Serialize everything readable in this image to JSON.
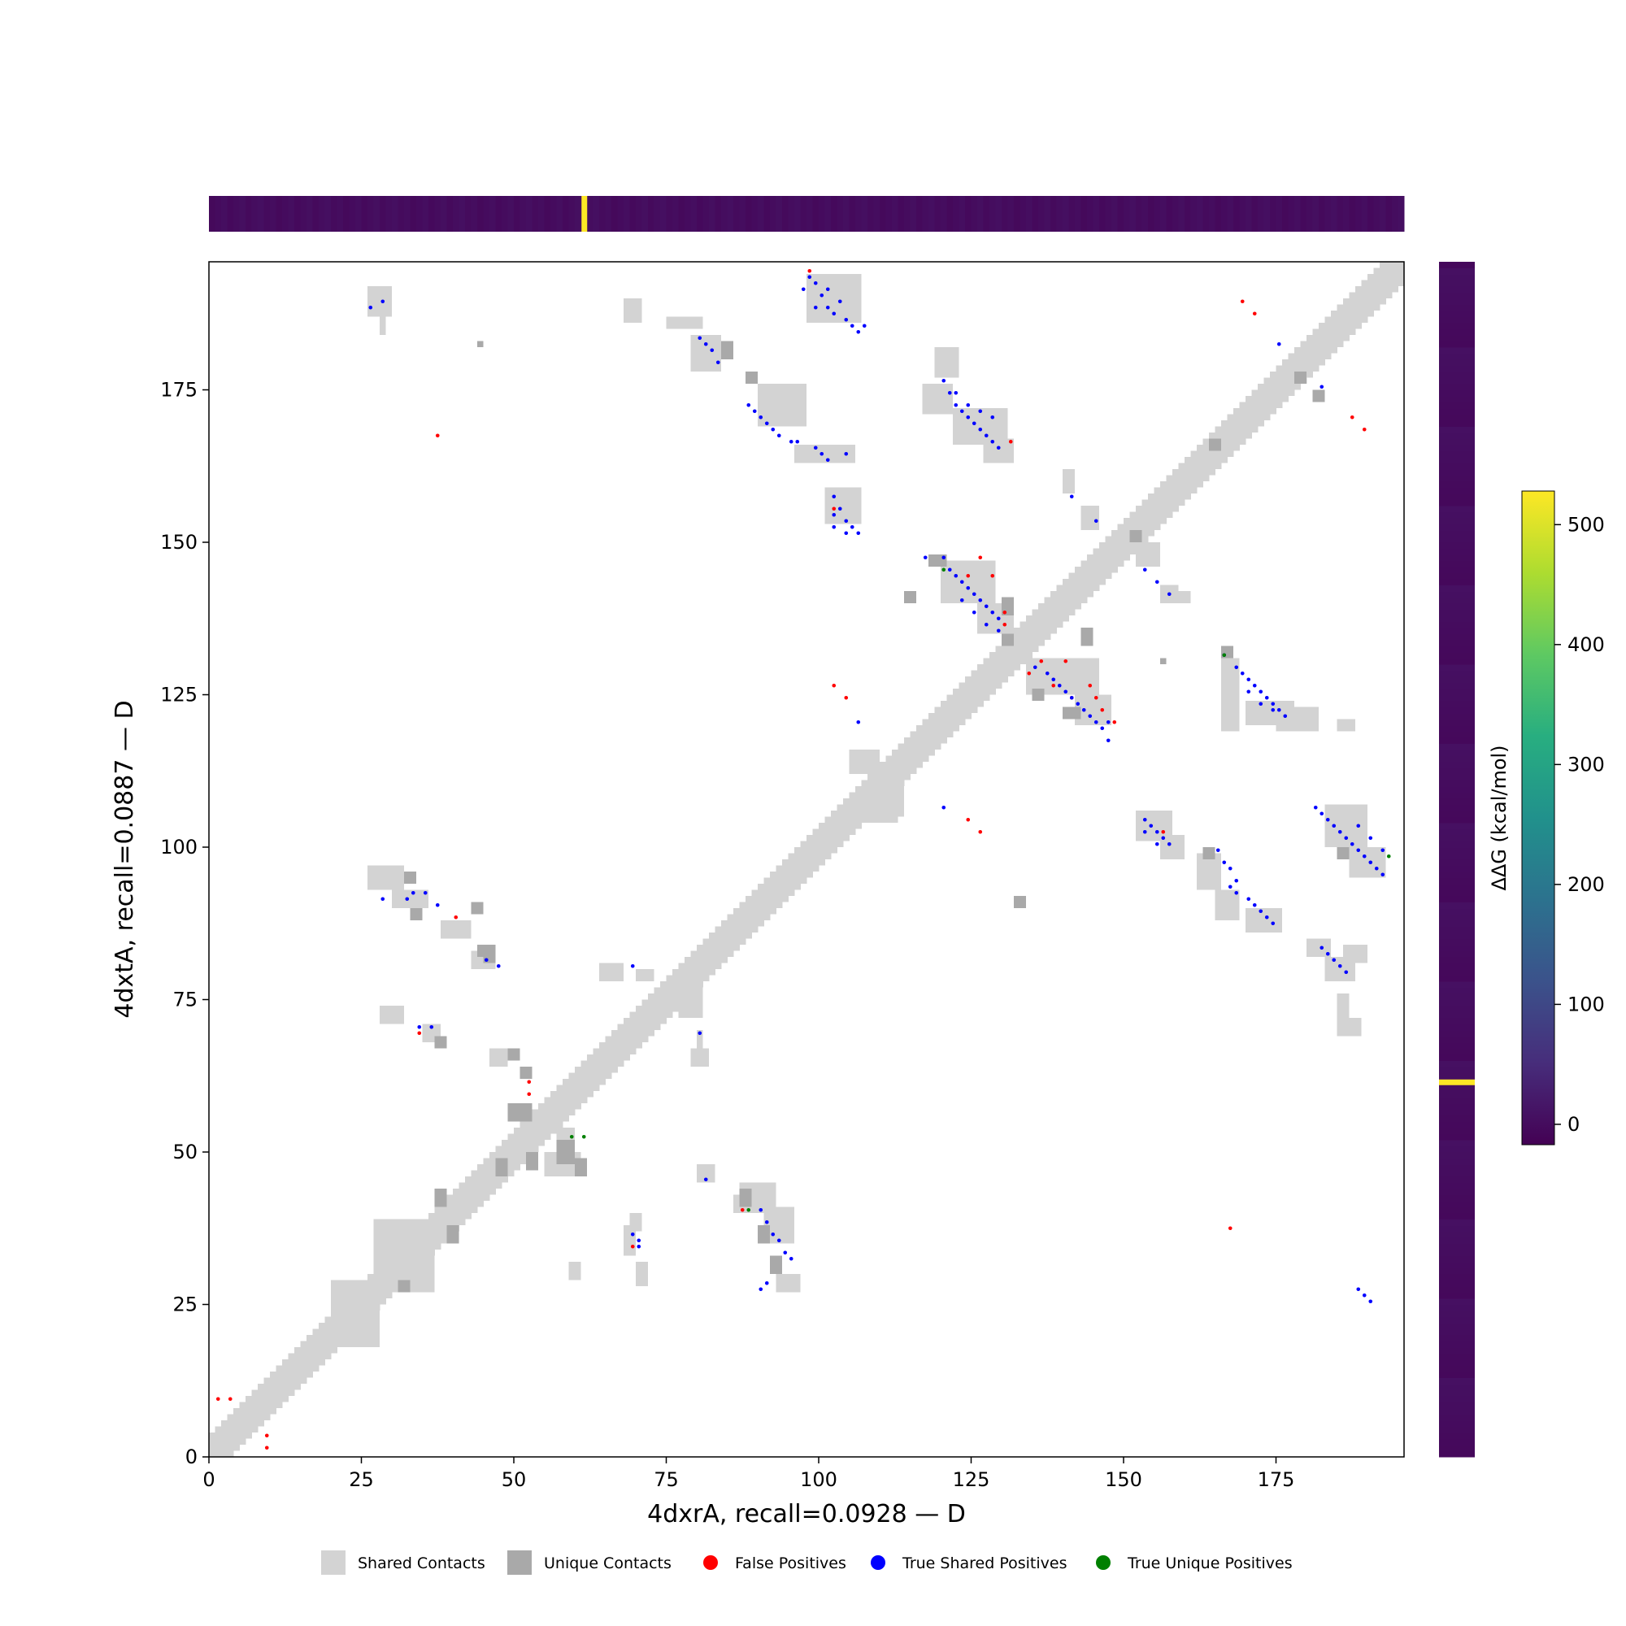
{
  "chart_data": {
    "type": "heatmap",
    "subtype": "protein contact map comparison",
    "xlabel": "4dxrA, recall=0.0928 — D",
    "ylabel": "4dxtA, recall=0.0887 — D",
    "xlim": [
      0,
      196
    ],
    "ylim": [
      0,
      196
    ],
    "x_ticks": [
      0,
      25,
      50,
      75,
      100,
      125,
      150,
      175
    ],
    "y_ticks": [
      0,
      25,
      50,
      75,
      100,
      125,
      150,
      175
    ],
    "colorbar": {
      "label": "ΔΔG (kcal/mol)",
      "colormap": "viridis",
      "ticks": [
        0,
        100,
        200,
        300,
        400,
        500
      ],
      "range": [
        -17,
        528
      ]
    },
    "top_strip": {
      "colormap": "viridis",
      "baseline_value": 0,
      "highlight": {
        "residue": 61.5,
        "value": 528
      }
    },
    "right_strip": {
      "colormap": "viridis",
      "baseline_value": 0,
      "highlight": {
        "residue": 61.5,
        "value": 528
      }
    },
    "legend": {
      "placement": "bottom",
      "items": [
        {
          "label": "Shared Contacts",
          "marker": "square",
          "color": "#d3d3d3"
        },
        {
          "label": "Unique Contacts",
          "marker": "square",
          "color": "#a9a9a9"
        },
        {
          "label": "False Positives",
          "marker": "circle",
          "color": "#ff0000"
        },
        {
          "label": "True Shared Positives",
          "marker": "circle",
          "color": "#0000ff"
        },
        {
          "label": "True Unique Positives",
          "marker": "circle",
          "color": "#008000"
        }
      ]
    },
    "colors": {
      "shared": "#d3d3d3",
      "unique": "#a9a9a9",
      "false_positive": "#ff0000",
      "true_shared": "#0000ff",
      "true_unique": "#008000"
    },
    "diagonal_band": {
      "half_width": 3
    },
    "shared_contact_blocks": [
      [
        26,
        187,
        4,
        5
      ],
      [
        28,
        184,
        1,
        3
      ],
      [
        68,
        186,
        3,
        4
      ],
      [
        75,
        185,
        6,
        2
      ],
      [
        79,
        178,
        5,
        6
      ],
      [
        90,
        169,
        8,
        7
      ],
      [
        96,
        163,
        10,
        3
      ],
      [
        101,
        153,
        6,
        6
      ],
      [
        98,
        186,
        9,
        8
      ],
      [
        117,
        171,
        5,
        5
      ],
      [
        122,
        166,
        9,
        6
      ],
      [
        127,
        163,
        5,
        4
      ],
      [
        119,
        177,
        4,
        5
      ],
      [
        140,
        158,
        2,
        4
      ],
      [
        143,
        152,
        3,
        4
      ],
      [
        152,
        146,
        4,
        4
      ],
      [
        156,
        140,
        3,
        3
      ],
      [
        158,
        140,
        3,
        2
      ],
      [
        120,
        140,
        9,
        7
      ],
      [
        126,
        135,
        6,
        5
      ],
      [
        134,
        125,
        12,
        6
      ],
      [
        142,
        120,
        6,
        5
      ],
      [
        166,
        119,
        3,
        12
      ],
      [
        170,
        120,
        8,
        4
      ],
      [
        175,
        119,
        7,
        4
      ],
      [
        185,
        119,
        3,
        2
      ],
      [
        110,
        108,
        4,
        6
      ],
      [
        105,
        112,
        5,
        4
      ],
      [
        107,
        104,
        6,
        6
      ],
      [
        111,
        105,
        3,
        4
      ],
      [
        152,
        101,
        6,
        5
      ],
      [
        156,
        98,
        4,
        4
      ],
      [
        162,
        93,
        4,
        6
      ],
      [
        165,
        88,
        4,
        5
      ],
      [
        170,
        86,
        6,
        4
      ],
      [
        183,
        100,
        7,
        7
      ],
      [
        187,
        95,
        6,
        5
      ],
      [
        189,
        96,
        3,
        4
      ],
      [
        186,
        81,
        4,
        3
      ],
      [
        183,
        78,
        5,
        4
      ],
      [
        180,
        82,
        4,
        3
      ],
      [
        185,
        69,
        4,
        3
      ],
      [
        185,
        72,
        2,
        4
      ],
      [
        26,
        93,
        6,
        4
      ],
      [
        30,
        90,
        6,
        3
      ],
      [
        38,
        85,
        5,
        3
      ],
      [
        43,
        80,
        4,
        3
      ],
      [
        64,
        78,
        4,
        3
      ],
      [
        77,
        72,
        4,
        6
      ],
      [
        70,
        78,
        3,
        2
      ],
      [
        79,
        64,
        3,
        3
      ],
      [
        80,
        66,
        1,
        4
      ],
      [
        28,
        71,
        4,
        3
      ],
      [
        35,
        68,
        3,
        3
      ],
      [
        46,
        64,
        3,
        3
      ],
      [
        55,
        46,
        6,
        4
      ],
      [
        57,
        50,
        3,
        4
      ],
      [
        87,
        40,
        6,
        5
      ],
      [
        91,
        35,
        5,
        6
      ],
      [
        93,
        27,
        4,
        3
      ],
      [
        80,
        45,
        3,
        3
      ],
      [
        86,
        40,
        3,
        3
      ],
      [
        59,
        29,
        2,
        3
      ],
      [
        68,
        33,
        2,
        5
      ],
      [
        70,
        28,
        2,
        4
      ],
      [
        69,
        37,
        2,
        3
      ],
      [
        27,
        27,
        10,
        12
      ],
      [
        20,
        18,
        8,
        11
      ]
    ],
    "unique_contact_blocks": [
      [
        44,
        182,
        1,
        1
      ],
      [
        84,
        180,
        2,
        3
      ],
      [
        88,
        176,
        2,
        2
      ],
      [
        130,
        138,
        2,
        3
      ],
      [
        130,
        133,
        2,
        2
      ],
      [
        118,
        146,
        3,
        2
      ],
      [
        143,
        133,
        2,
        3
      ],
      [
        140,
        121,
        3,
        2
      ],
      [
        166,
        131,
        2,
        2
      ],
      [
        135,
        124,
        2,
        2
      ],
      [
        164,
        165,
        2,
        2
      ],
      [
        181,
        173,
        2,
        2
      ],
      [
        178,
        176,
        2,
        2
      ],
      [
        151,
        150,
        2,
        2
      ],
      [
        156,
        130,
        1,
        1
      ],
      [
        114,
        140,
        2,
        2
      ],
      [
        163,
        98,
        2,
        2
      ],
      [
        185,
        98,
        2,
        2
      ],
      [
        32,
        94,
        2,
        2
      ],
      [
        33,
        88,
        2,
        2
      ],
      [
        43,
        89,
        2,
        2
      ],
      [
        45,
        81,
        2,
        3
      ],
      [
        44,
        82,
        1,
        2
      ],
      [
        132,
        90,
        2,
        2
      ],
      [
        37,
        67,
        2,
        2
      ],
      [
        49,
        65,
        2,
        2
      ],
      [
        51,
        62,
        2,
        2
      ],
      [
        57,
        48,
        3,
        4
      ],
      [
        60,
        46,
        2,
        3
      ],
      [
        52,
        47,
        2,
        3
      ],
      [
        49,
        55,
        4,
        3
      ],
      [
        47,
        46,
        2,
        3
      ],
      [
        37,
        41,
        2,
        3
      ],
      [
        39,
        35,
        2,
        3
      ],
      [
        31,
        27,
        2,
        2
      ],
      [
        87,
        41,
        2,
        3
      ],
      [
        90,
        35,
        2,
        3
      ],
      [
        92,
        30,
        2,
        3
      ]
    ],
    "false_positives": [
      [
        98,
        194
      ],
      [
        169,
        189
      ],
      [
        171,
        187
      ],
      [
        37,
        167
      ],
      [
        131,
        166
      ],
      [
        187,
        170
      ],
      [
        189,
        168
      ],
      [
        102,
        155
      ],
      [
        126,
        147
      ],
      [
        130,
        138
      ],
      [
        130,
        136
      ],
      [
        128,
        144
      ],
      [
        124,
        144
      ],
      [
        102,
        126
      ],
      [
        104,
        124
      ],
      [
        136,
        130
      ],
      [
        140,
        130
      ],
      [
        134,
        128
      ],
      [
        138,
        126
      ],
      [
        141,
        124
      ],
      [
        144,
        126
      ],
      [
        145,
        124
      ],
      [
        146,
        122
      ],
      [
        148,
        120
      ],
      [
        124,
        104
      ],
      [
        126,
        102
      ],
      [
        156,
        102
      ],
      [
        40,
        88
      ],
      [
        34,
        69
      ],
      [
        52,
        61
      ],
      [
        52,
        59
      ],
      [
        69,
        34
      ],
      [
        87,
        40
      ],
      [
        167,
        37
      ],
      [
        1,
        9
      ],
      [
        3,
        9
      ],
      [
        9,
        3
      ],
      [
        9,
        1
      ]
    ],
    "true_shared_positives": [
      [
        98,
        193
      ],
      [
        97,
        191
      ],
      [
        99,
        192
      ],
      [
        100,
        190
      ],
      [
        101,
        188
      ],
      [
        103,
        189
      ],
      [
        102,
        187
      ],
      [
        104,
        186
      ],
      [
        105,
        185
      ],
      [
        106,
        184
      ],
      [
        107,
        185
      ],
      [
        99,
        188
      ],
      [
        101,
        191
      ],
      [
        28,
        189
      ],
      [
        26,
        188
      ],
      [
        80,
        183
      ],
      [
        81,
        182
      ],
      [
        82,
        181
      ],
      [
        83,
        179
      ],
      [
        88,
        172
      ],
      [
        89,
        171
      ],
      [
        90,
        170
      ],
      [
        91,
        169
      ],
      [
        92,
        168
      ],
      [
        93,
        167
      ],
      [
        95,
        166
      ],
      [
        96,
        166
      ],
      [
        99,
        165
      ],
      [
        100,
        164
      ],
      [
        101,
        163
      ],
      [
        104,
        164
      ],
      [
        120,
        176
      ],
      [
        121,
        174
      ],
      [
        122,
        172
      ],
      [
        123,
        171
      ],
      [
        124,
        170
      ],
      [
        125,
        169
      ],
      [
        126,
        168
      ],
      [
        127,
        167
      ],
      [
        128,
        166
      ],
      [
        129,
        165
      ],
      [
        122,
        174
      ],
      [
        124,
        172
      ],
      [
        126,
        171
      ],
      [
        128,
        170
      ],
      [
        102,
        157
      ],
      [
        103,
        155
      ],
      [
        104,
        153
      ],
      [
        105,
        152
      ],
      [
        106,
        151
      ],
      [
        102,
        152
      ],
      [
        104,
        151
      ],
      [
        102,
        154
      ],
      [
        117,
        147
      ],
      [
        120,
        147
      ],
      [
        121,
        145
      ],
      [
        122,
        144
      ],
      [
        123,
        143
      ],
      [
        124,
        142
      ],
      [
        125,
        141
      ],
      [
        126,
        140
      ],
      [
        127,
        139
      ],
      [
        128,
        138
      ],
      [
        129,
        137
      ],
      [
        123,
        140
      ],
      [
        125,
        138
      ],
      [
        127,
        136
      ],
      [
        129,
        135
      ],
      [
        135,
        129
      ],
      [
        137,
        128
      ],
      [
        138,
        127
      ],
      [
        139,
        126
      ],
      [
        140,
        125
      ],
      [
        141,
        124
      ],
      [
        142,
        123
      ],
      [
        143,
        122
      ],
      [
        144,
        121
      ],
      [
        145,
        120
      ],
      [
        146,
        119
      ],
      [
        147,
        117
      ],
      [
        147,
        120
      ],
      [
        141,
        157
      ],
      [
        145,
        153
      ],
      [
        153,
        145
      ],
      [
        155,
        143
      ],
      [
        157,
        141
      ],
      [
        175,
        182
      ],
      [
        182,
        175
      ],
      [
        166,
        131
      ],
      [
        168,
        129
      ],
      [
        169,
        128
      ],
      [
        170,
        127
      ],
      [
        171,
        126
      ],
      [
        172,
        125
      ],
      [
        173,
        124
      ],
      [
        174,
        123
      ],
      [
        175,
        122
      ],
      [
        170,
        125
      ],
      [
        172,
        123
      ],
      [
        174,
        122
      ],
      [
        176,
        121
      ],
      [
        106,
        120
      ],
      [
        120,
        106
      ],
      [
        153,
        104
      ],
      [
        154,
        103
      ],
      [
        155,
        102
      ],
      [
        156,
        101
      ],
      [
        157,
        100
      ],
      [
        155,
        100
      ],
      [
        153,
        102
      ],
      [
        165,
        99
      ],
      [
        166,
        97
      ],
      [
        167,
        96
      ],
      [
        168,
        94
      ],
      [
        167,
        93
      ],
      [
        168,
        92
      ],
      [
        170,
        91
      ],
      [
        171,
        90
      ],
      [
        172,
        89
      ],
      [
        173,
        88
      ],
      [
        174,
        87
      ],
      [
        181,
        106
      ],
      [
        182,
        105
      ],
      [
        183,
        104
      ],
      [
        184,
        103
      ],
      [
        185,
        102
      ],
      [
        186,
        101
      ],
      [
        187,
        100
      ],
      [
        188,
        99
      ],
      [
        189,
        98
      ],
      [
        190,
        97
      ],
      [
        191,
        96
      ],
      [
        192,
        95
      ],
      [
        188,
        103
      ],
      [
        190,
        101
      ],
      [
        192,
        99
      ],
      [
        182,
        83
      ],
      [
        183,
        82
      ],
      [
        184,
        81
      ],
      [
        185,
        80
      ],
      [
        186,
        79
      ],
      [
        28,
        91
      ],
      [
        33,
        92
      ],
      [
        35,
        92
      ],
      [
        37,
        90
      ],
      [
        32,
        91
      ],
      [
        34,
        70
      ],
      [
        36,
        70
      ],
      [
        45,
        81
      ],
      [
        47,
        80
      ],
      [
        69,
        80
      ],
      [
        80,
        69
      ],
      [
        69,
        36
      ],
      [
        70,
        35
      ],
      [
        70,
        34
      ],
      [
        81,
        45
      ],
      [
        90,
        40
      ],
      [
        91,
        38
      ],
      [
        92,
        36
      ],
      [
        93,
        35
      ],
      [
        94,
        33
      ],
      [
        95,
        32
      ],
      [
        91,
        28
      ],
      [
        90,
        27
      ],
      [
        188,
        27
      ],
      [
        189,
        26
      ],
      [
        190,
        25
      ]
    ],
    "true_unique_positives": [
      [
        120,
        145
      ],
      [
        166,
        131
      ],
      [
        59,
        52
      ],
      [
        61,
        52
      ],
      [
        88,
        40
      ],
      [
        193,
        98
      ]
    ]
  }
}
